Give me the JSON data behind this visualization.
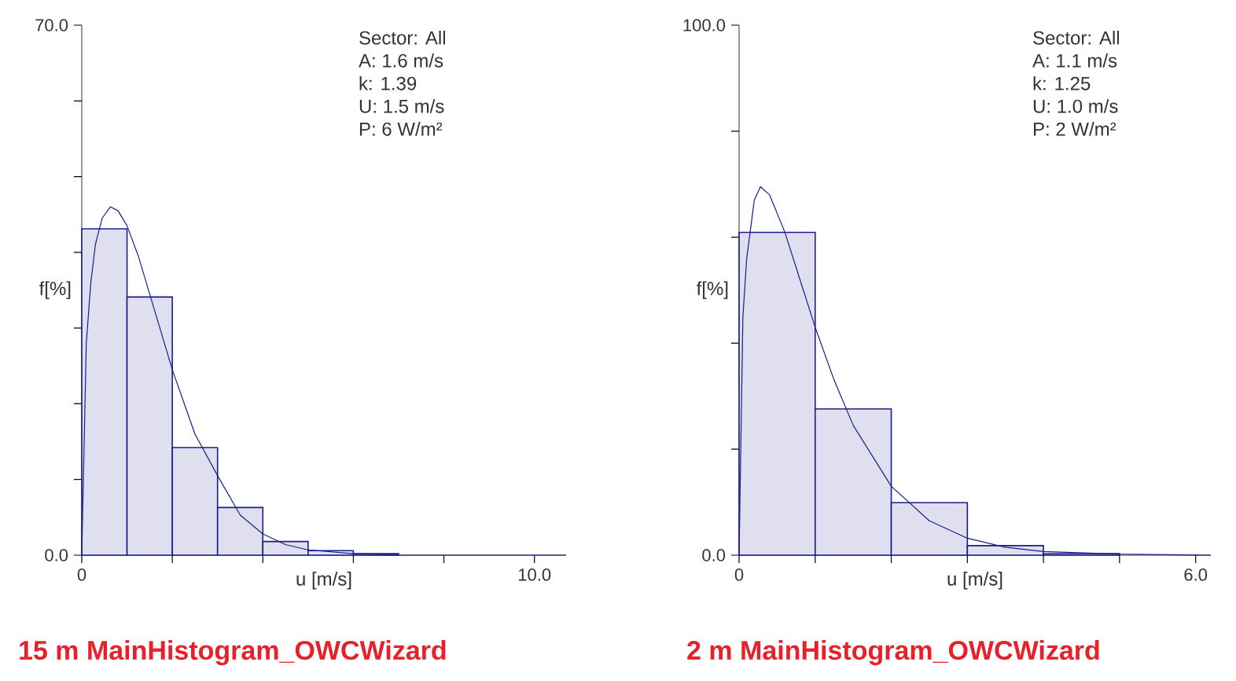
{
  "chart_data": [
    {
      "type": "histogram",
      "title": "15 m MainHistogram_OWCWizard",
      "xlabel": "u [m/s]",
      "ylabel": "f[%]",
      "annotations": [
        "Sector: All",
        "A: 1.6 m/s",
        "k: 1.39",
        "U: 1.5 m/s",
        "P: 6 W/m²"
      ],
      "xlim": [
        0,
        10.7
      ],
      "ylim": [
        0,
        70
      ],
      "xticks": [
        0,
        {
          "value": 2,
          "label": null
        },
        {
          "value": 4,
          "label": null
        },
        {
          "value": 6,
          "label": null
        },
        {
          "value": 8,
          "label": null
        },
        {
          "value": 10,
          "label": "10.0"
        }
      ],
      "yticks": [
        {
          "value": 0,
          "label": "0.0"
        },
        {
          "value": 10,
          "label": null
        },
        {
          "value": 20,
          "label": null
        },
        {
          "value": 30,
          "label": null
        },
        {
          "value": 40,
          "label": null
        },
        {
          "value": 50,
          "label": null
        },
        {
          "value": 60,
          "label": null
        },
        {
          "value": 70,
          "label": "70.0"
        }
      ],
      "series": [
        {
          "type": "histogram",
          "color": "#1c1c8c",
          "bins": [
            0,
            1,
            2,
            3,
            4,
            5,
            6,
            7
          ],
          "values": [
            43.1,
            34.1,
            14.2,
            6.3,
            1.8,
            0.6,
            0.2
          ]
        },
        {
          "type": "line",
          "color": "#1c1c8c",
          "x": [
            0,
            0.1,
            0.2,
            0.3,
            0.45,
            0.63,
            0.8,
            1.0,
            1.25,
            1.5,
            1.75,
            2.0,
            2.5,
            3.0,
            3.5,
            4.0,
            4.5,
            5.0,
            6.0,
            7.0,
            8.0,
            10.7
          ],
          "values": [
            0,
            28,
            36,
            41,
            44.5,
            46,
            45.5,
            43.5,
            39.5,
            34.5,
            29.5,
            24.5,
            16,
            10.5,
            5.3,
            2.8,
            1.4,
            0.7,
            0.2,
            0,
            0,
            0
          ]
        }
      ]
    },
    {
      "type": "histogram",
      "title": "2 m MainHistogram_OWCWizard",
      "xlabel": "u [m/s]",
      "ylabel": "f[%]",
      "annotations": [
        "Sector: All",
        "A: 1.1 m/s",
        "k: 1.25",
        "U: 1.0 m/s",
        "P: 2 W/m²"
      ],
      "xlim": [
        0,
        6.2
      ],
      "ylim": [
        0,
        100
      ],
      "xticks": [
        0,
        {
          "value": 1,
          "label": null
        },
        {
          "value": 2,
          "label": null
        },
        {
          "value": 3,
          "label": null
        },
        {
          "value": 4,
          "label": null
        },
        {
          "value": 5,
          "label": null
        },
        {
          "value": 6,
          "label": "6.0"
        }
      ],
      "yticks": [
        {
          "value": 0,
          "label": "0.0"
        },
        {
          "value": 20,
          "label": null
        },
        {
          "value": 40,
          "label": null
        },
        {
          "value": 60,
          "label": null
        },
        {
          "value": 80,
          "label": null
        },
        {
          "value": 100,
          "label": "100.0"
        }
      ],
      "series": [
        {
          "type": "histogram",
          "color": "#1c1c8c",
          "bins": [
            0,
            1,
            2,
            3,
            4,
            5
          ],
          "values": [
            60.9,
            27.6,
            9.9,
            1.8,
            0.3
          ]
        },
        {
          "type": "line",
          "color": "#1c1c8c",
          "x": [
            0,
            0.05,
            0.1,
            0.2,
            0.28,
            0.4,
            0.6,
            0.8,
            1.0,
            1.25,
            1.5,
            2.0,
            2.5,
            3.0,
            3.5,
            4.0,
            5.0,
            6.2
          ],
          "values": [
            0,
            45,
            56,
            67,
            69.5,
            68,
            61,
            52,
            43,
            33,
            24.5,
            13,
            6.5,
            3.2,
            1.5,
            0.7,
            0.2,
            0
          ]
        }
      ]
    }
  ]
}
